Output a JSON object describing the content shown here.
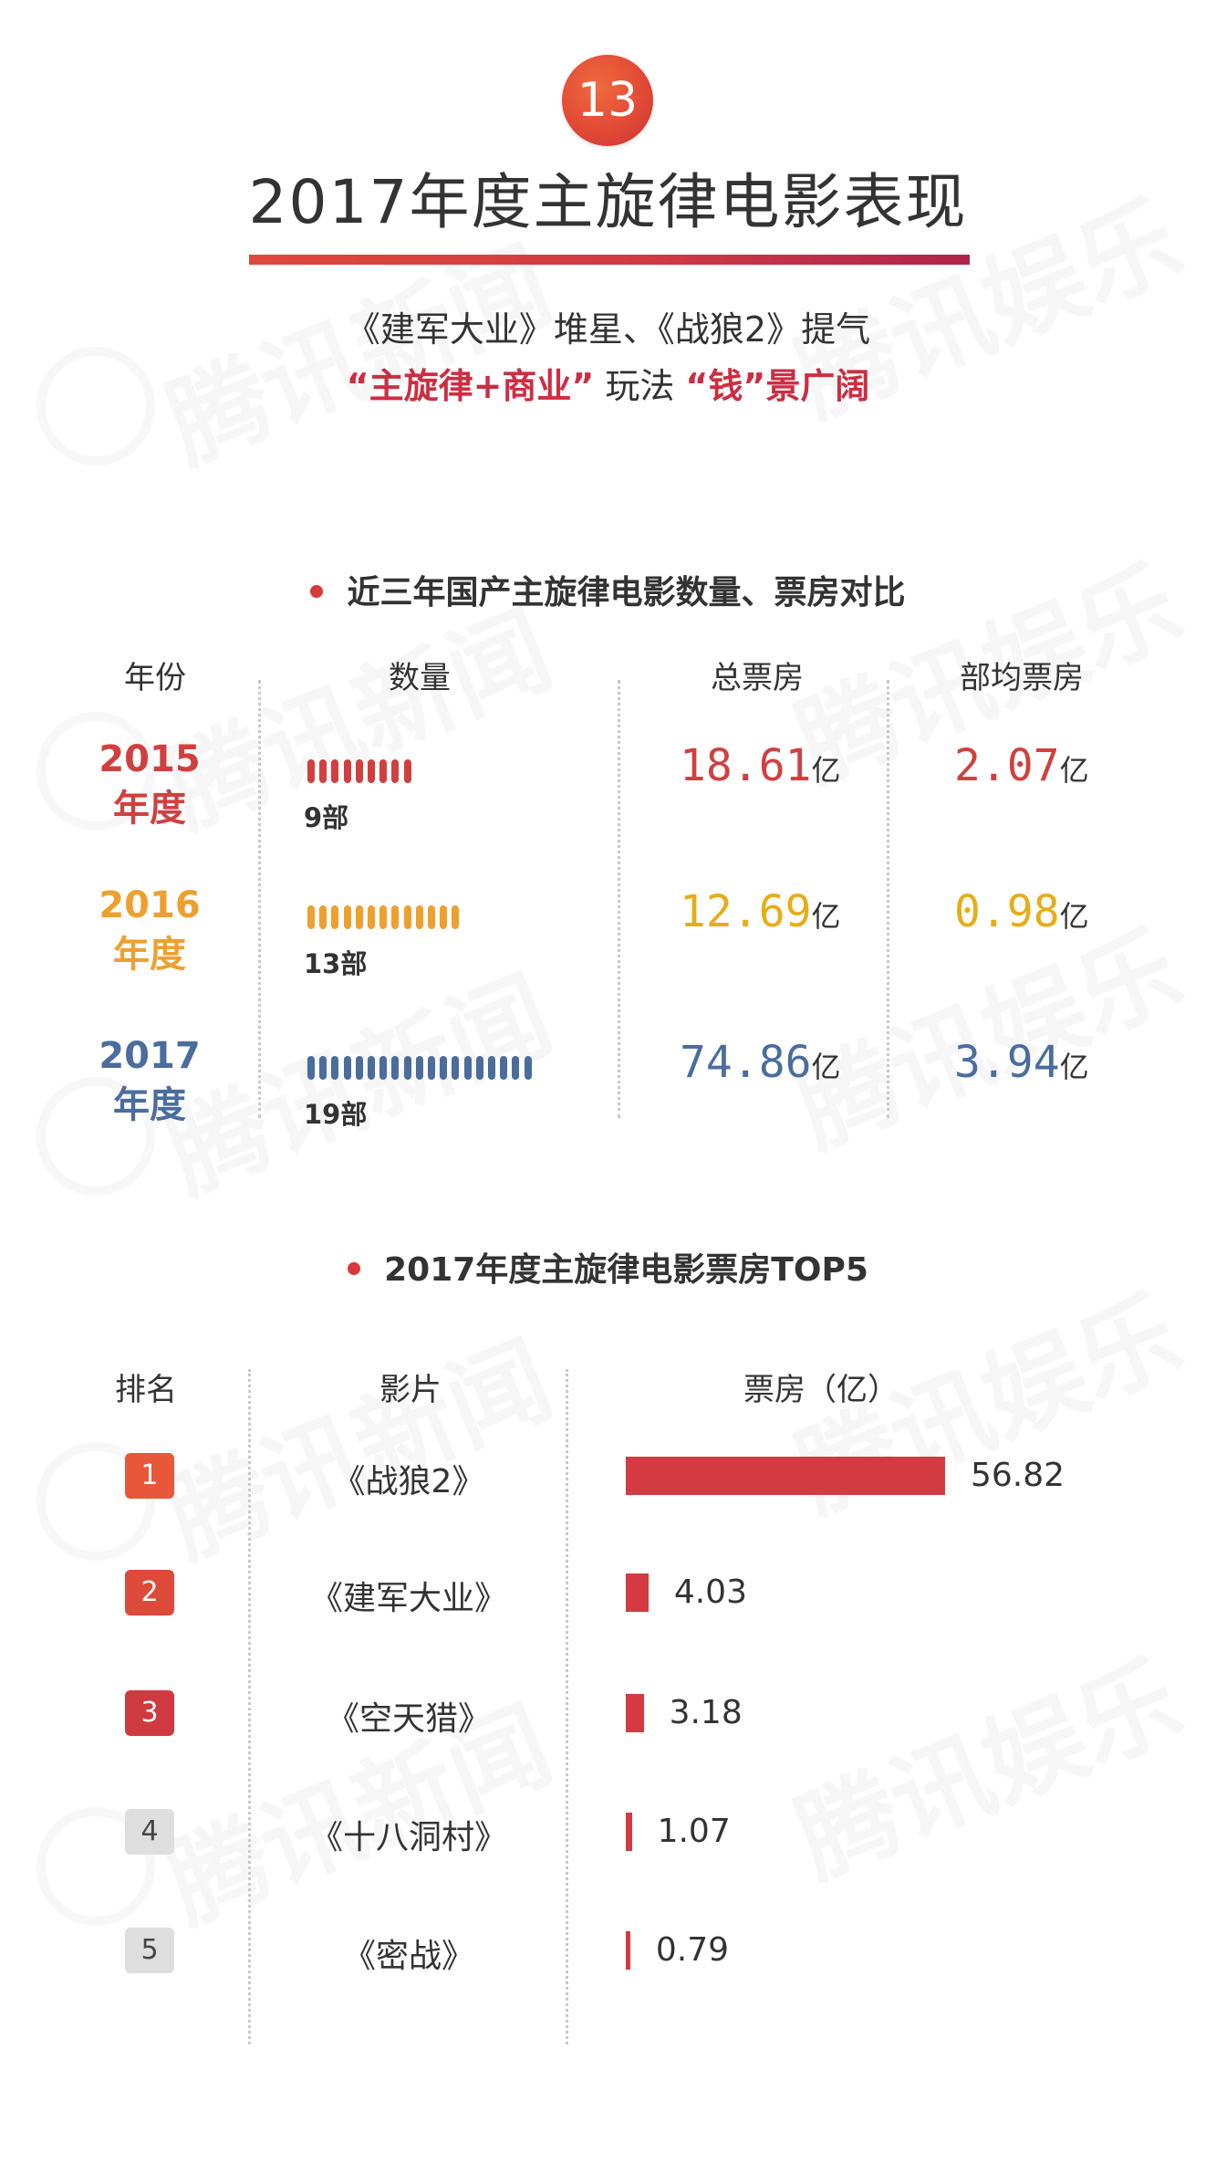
{
  "badge": "13",
  "title": "2017年度主旋律电影表现",
  "subtitle": {
    "line1": "《建军大业》堆星、《战狼2》提气",
    "line2_part1": "“主旋律+商业”",
    "line2_part2": "玩法",
    "line2_part3": "“钱”景广阔"
  },
  "section1": {
    "title": "近三年国产主旋律电影数量、票房对比",
    "headers": {
      "year": "年份",
      "count": "数量",
      "total": "总票房",
      "avg": "部均票房"
    },
    "unit": "亿"
  },
  "section2": {
    "title": "2017年度主旋律电影票房TOP5",
    "headers": {
      "rank": "排名",
      "film": "影片",
      "gross": "票房（亿）"
    }
  },
  "watermark": [
    "腾讯新闻",
    "腾讯娱乐"
  ],
  "colors": {
    "y2015": "#d23f3f",
    "y2016": "#eea02f",
    "y2016_money": "#e7ad17",
    "y2017": "#4a6d9d",
    "bar": "#d33a41",
    "rank_top": [
      "#e8573a",
      "#dd4a3a",
      "#cf3a40"
    ],
    "rank_rest": "#dedede"
  },
  "chart_data": [
    {
      "type": "table",
      "title": "近三年国产主旋律电影数量、票房对比",
      "rows": [
        {
          "year_num": "2015",
          "year_suffix": "年度",
          "count": 9,
          "count_label": "9部",
          "total": "18.61",
          "avg": "2.07"
        },
        {
          "year_num": "2016",
          "year_suffix": "年度",
          "count": 13,
          "count_label": "13部",
          "total": "12.69",
          "avg": "0.98"
        },
        {
          "year_num": "2017",
          "year_suffix": "年度",
          "count": 19,
          "count_label": "19部",
          "total": "74.86",
          "avg": "3.94"
        }
      ]
    },
    {
      "type": "bar",
      "title": "2017年度主旋律电影票房TOP5",
      "ylabel": "票房（亿）",
      "items": [
        {
          "rank": "1",
          "film": "《战狼2》",
          "value": 56.82,
          "label": "56.82"
        },
        {
          "rank": "2",
          "film": "《建军大业》",
          "value": 4.03,
          "label": "4.03"
        },
        {
          "rank": "3",
          "film": "《空天猎》",
          "value": 3.18,
          "label": "3.18"
        },
        {
          "rank": "4",
          "film": "《十八洞村》",
          "value": 1.07,
          "label": "1.07"
        },
        {
          "rank": "5",
          "film": "《密战》",
          "value": 0.79,
          "label": "0.79"
        }
      ]
    }
  ]
}
